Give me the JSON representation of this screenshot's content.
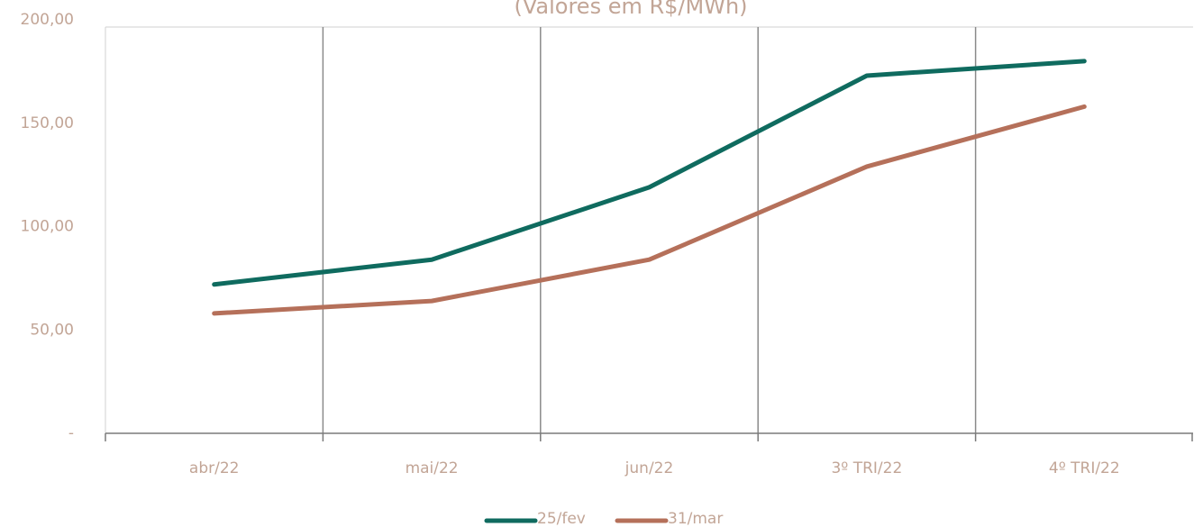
{
  "chart_data": {
    "type": "line",
    "subtitle": "(Valores em R$/MWh)",
    "categories": [
      "abr/22",
      "mai/22",
      "jun/22",
      "3º TRI/22",
      "4º TRI/22"
    ],
    "series": [
      {
        "name": "25/fev",
        "color": "#0f6b5f",
        "values": [
          72,
          84,
          119,
          173,
          180
        ]
      },
      {
        "name": "31/mar",
        "color": "#b5705a",
        "values": [
          58,
          64,
          84,
          129,
          158
        ]
      }
    ],
    "ylim": [
      0,
      200
    ],
    "yticks": [
      {
        "value": 0,
        "label": "-"
      },
      {
        "value": 50,
        "label": "50,00"
      },
      {
        "value": 100,
        "label": "100,00"
      },
      {
        "value": 150,
        "label": "150,00"
      },
      {
        "value": 200,
        "label": "200,00"
      }
    ]
  }
}
